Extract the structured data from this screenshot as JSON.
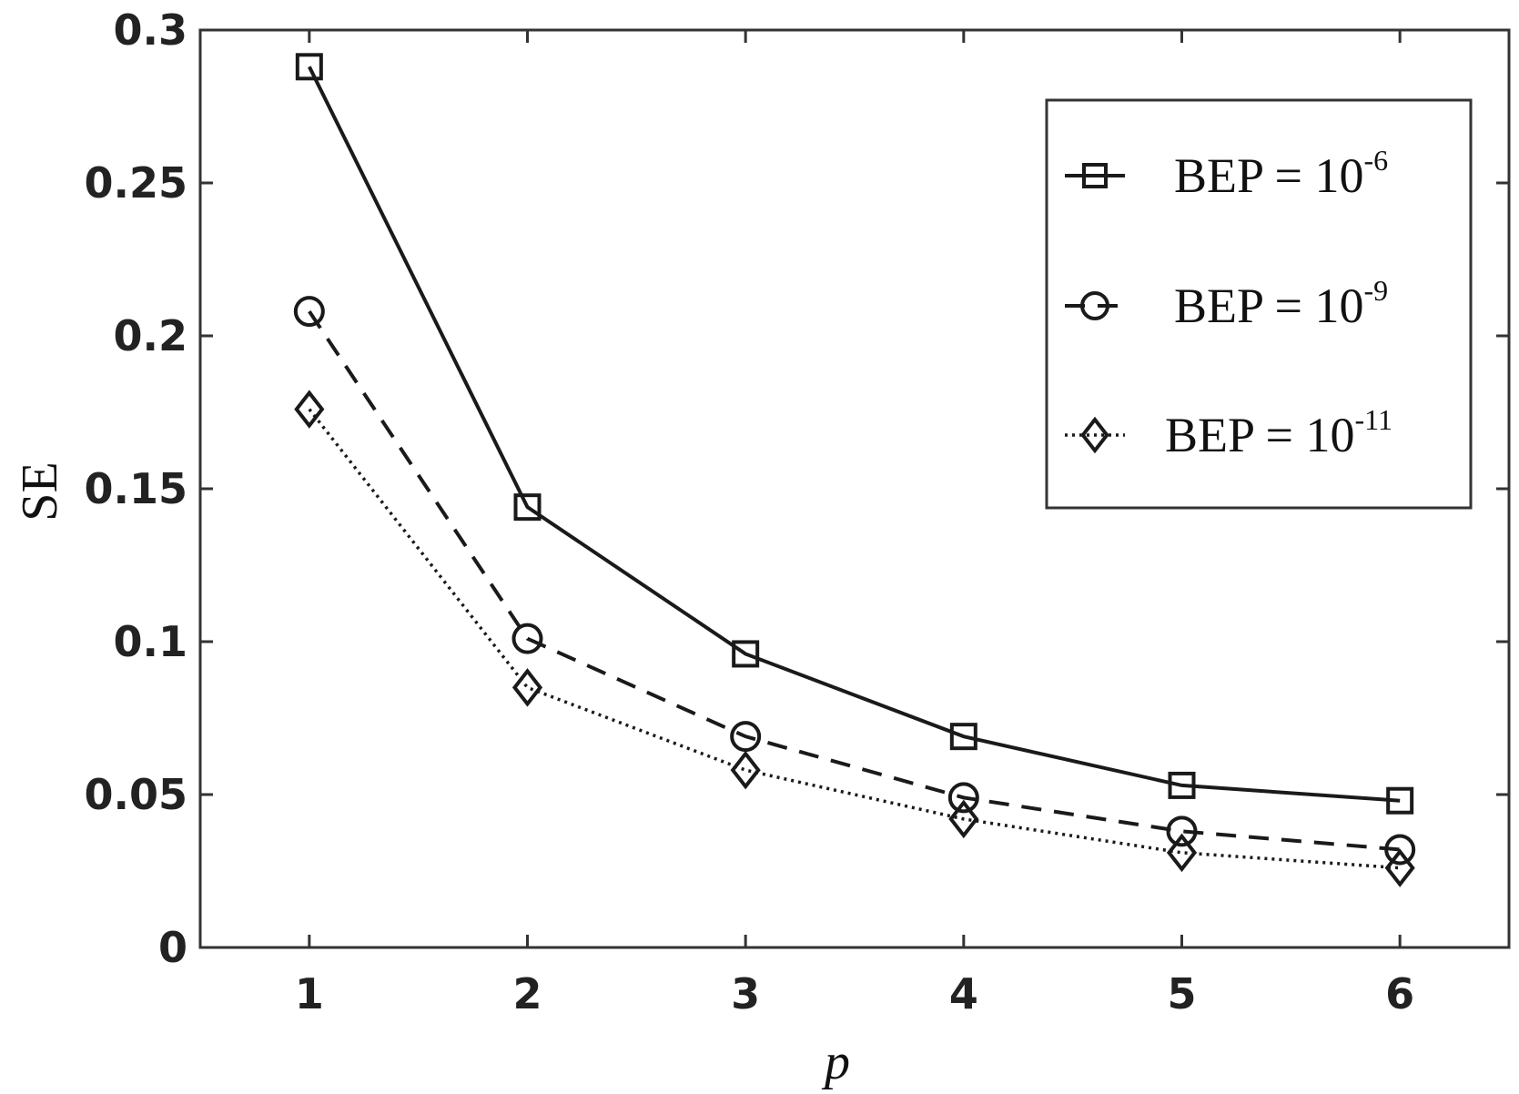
{
  "chart_data": {
    "type": "line",
    "xlabel": "p",
    "ylabel": "SE",
    "x": [
      1,
      2,
      3,
      4,
      5,
      6
    ],
    "xlim": [
      0.5,
      6.5
    ],
    "ylim": [
      0,
      0.3
    ],
    "x_ticks": [
      "1",
      "2",
      "3",
      "4",
      "5",
      "6"
    ],
    "y_ticks": [
      "0",
      "0.05",
      "0.1",
      "0.15",
      "0.2",
      "0.25",
      "0.3"
    ],
    "y_tick_values": [
      0,
      0.05,
      0.1,
      0.15,
      0.2,
      0.25,
      0.3
    ],
    "grid": false,
    "legend_position": "top-right",
    "series": [
      {
        "name": "BEP = 10-6",
        "legend_base": "BEP =  10",
        "legend_exp": "-6",
        "marker": "square",
        "line_style": "solid",
        "color": "#1a1a1a",
        "values": [
          0.288,
          0.144,
          0.096,
          0.069,
          0.053,
          0.048
        ]
      },
      {
        "name": "BEP = 10-9",
        "legend_base": "BEP =  10",
        "legend_exp": "-9",
        "marker": "circle",
        "line_style": "dashed",
        "color": "#1a1a1a",
        "values": [
          0.208,
          0.101,
          0.069,
          0.049,
          0.038,
          0.032
        ]
      },
      {
        "name": "BEP = 10-11",
        "legend_base": "BEP =  10",
        "legend_exp": "-11",
        "marker": "diamond",
        "line_style": "dotted",
        "color": "#1a1a1a",
        "values": [
          0.176,
          0.085,
          0.058,
          0.042,
          0.031,
          0.026
        ]
      }
    ]
  }
}
